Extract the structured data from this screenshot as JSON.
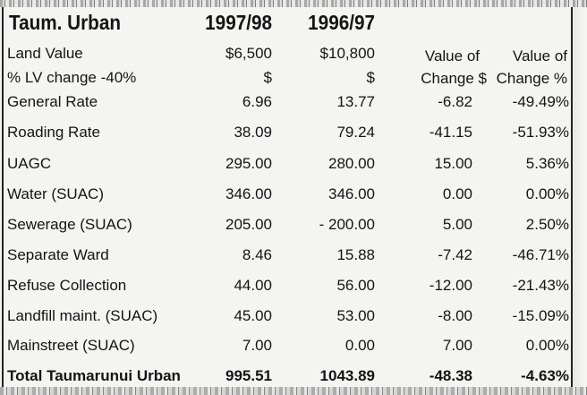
{
  "header": {
    "title": "Taum. Urban",
    "year_1": "1997/98",
    "year_2": "1996/97"
  },
  "land_value": {
    "label": "Land Value",
    "value_1": "$6,500",
    "value_2": "$10,800",
    "change_col_label_1": "Value of",
    "change_col_label_2": "Value of"
  },
  "lv_change": {
    "label": "% LV change -40%",
    "unit_1": "$",
    "unit_2": "$",
    "change_col_sublabel_1": "Change $",
    "change_col_sublabel_2": "Change %"
  },
  "rows": [
    {
      "label": "General Rate",
      "v1": "6.96",
      "v2": "13.77",
      "chg": "-6.82",
      "pct": "-49.49%"
    },
    {
      "label": "Roading Rate",
      "v1": "38.09",
      "v2": "79.24",
      "chg": "-41.15",
      "pct": "-51.93%"
    },
    {
      "label": "UAGC",
      "v1": "295.00",
      "v2": "280.00",
      "chg": "15.00",
      "pct": "5.36%"
    },
    {
      "label": "Water (SUAC)",
      "v1": "346.00",
      "v2": "346.00",
      "chg": "0.00",
      "pct": "0.00%"
    },
    {
      "label": "Sewerage (SUAC)",
      "v1": "205.00",
      "v2": "- 200.00",
      "chg": "5.00",
      "pct": "2.50%"
    },
    {
      "label": "Separate Ward",
      "v1": "8.46",
      "v2": "15.88",
      "chg": "-7.42",
      "pct": "-46.71%"
    },
    {
      "label": "Refuse Collection",
      "v1": "44.00",
      "v2": "56.00",
      "chg": "-12.00",
      "pct": "-21.43%"
    },
    {
      "label": "Landfill maint. (SUAC)",
      "v1": "45.00",
      "v2": "53.00",
      "chg": "-8.00",
      "pct": "-15.09%"
    },
    {
      "label": "Mainstreet (SUAC)",
      "v1": "7.00",
      "v2": "0.00",
      "chg": "7.00",
      "pct": "0.00%"
    }
  ],
  "total": {
    "label": "Total Taumarunui Urban",
    "v1": "995.51",
    "v2": "1043.89",
    "chg": "-48.38",
    "pct": "-4.63%"
  }
}
